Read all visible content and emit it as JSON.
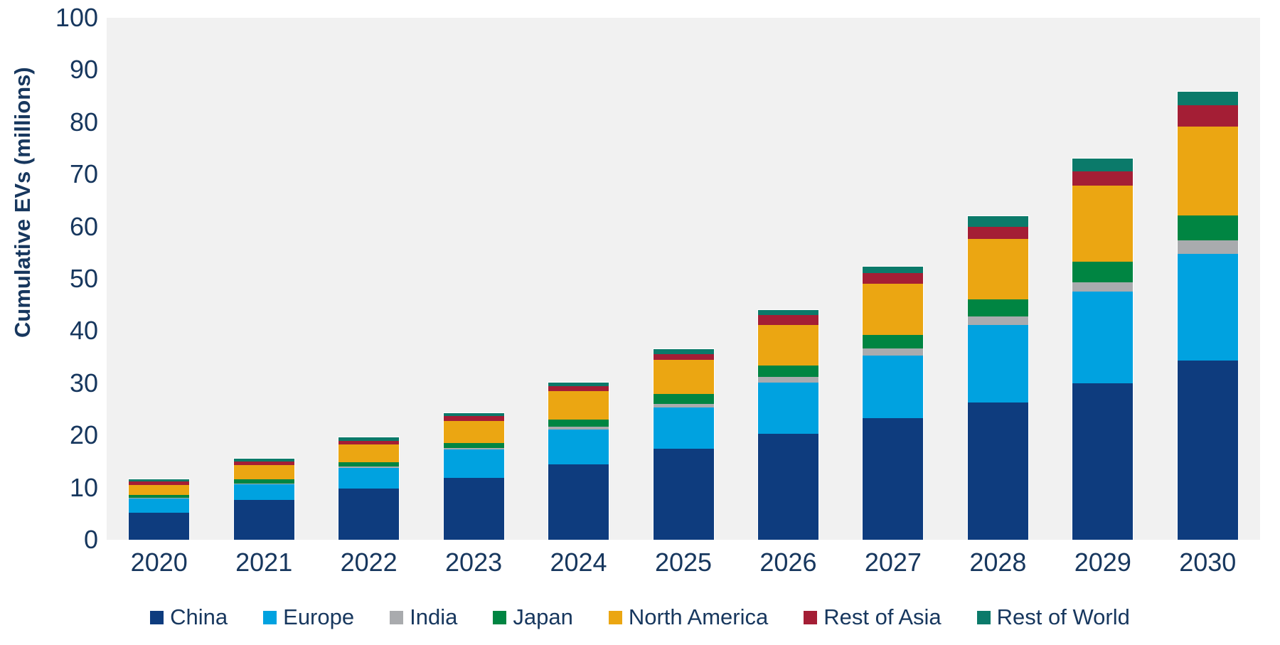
{
  "chart_data": {
    "type": "bar",
    "stacked": true,
    "title": "",
    "xlabel": "",
    "ylabel": "Cumulative EVs (millions)",
    "ylim": [
      0,
      100
    ],
    "y_ticks": [
      0,
      10,
      20,
      30,
      40,
      50,
      60,
      70,
      80,
      90,
      100
    ],
    "grid": false,
    "legend_position": "bottom",
    "plot_background": "#f1f1f1",
    "text_color": "#17375e",
    "categories": [
      "2020",
      "2021",
      "2022",
      "2023",
      "2024",
      "2025",
      "2026",
      "2027",
      "2028",
      "2029",
      "2030"
    ],
    "series": [
      {
        "name": "China",
        "color": "#0e3c7e",
        "values": [
          5.2,
          7.6,
          9.8,
          11.9,
          14.5,
          17.4,
          20.3,
          23.3,
          26.3,
          30.0,
          34.3
        ]
      },
      {
        "name": "Europe",
        "color": "#00a2e0",
        "values": [
          2.7,
          3.1,
          4.0,
          5.4,
          6.6,
          7.9,
          9.8,
          12.0,
          14.8,
          17.5,
          20.5
        ]
      },
      {
        "name": "India",
        "color": "#a9abae",
        "values": [
          0.1,
          0.1,
          0.3,
          0.3,
          0.6,
          0.7,
          1.1,
          1.3,
          1.7,
          1.8,
          2.5
        ]
      },
      {
        "name": "Japan",
        "color": "#008542",
        "values": [
          0.6,
          0.8,
          0.8,
          0.9,
          1.3,
          1.9,
          2.2,
          2.7,
          3.2,
          4.0,
          4.8
        ]
      },
      {
        "name": "North America",
        "color": "#eba612",
        "values": [
          1.9,
          2.7,
          3.3,
          4.3,
          5.5,
          6.6,
          7.8,
          9.7,
          11.6,
          14.6,
          17.1
        ]
      },
      {
        "name": "Rest of Asia",
        "color": "#a41e35",
        "values": [
          0.7,
          0.7,
          0.8,
          0.9,
          0.9,
          1.0,
          1.8,
          2.1,
          2.4,
          2.7,
          4.0
        ]
      },
      {
        "name": "Rest of World",
        "color": "#0b7a6a",
        "values": [
          0.4,
          0.5,
          0.6,
          0.6,
          0.7,
          1.0,
          1.0,
          1.2,
          2.0,
          2.4,
          2.6
        ]
      }
    ]
  }
}
